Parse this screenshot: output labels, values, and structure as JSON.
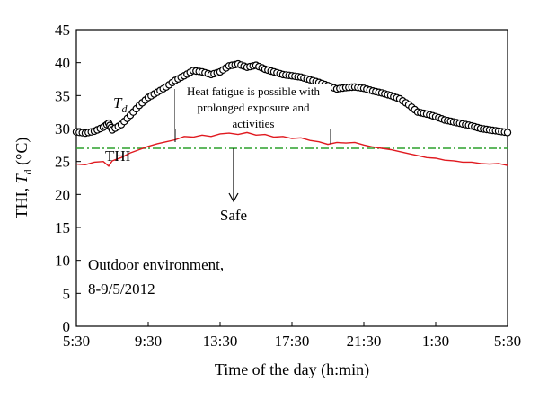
{
  "chart_data": {
    "type": "line",
    "xlabel": "Time of the day (h:min)",
    "ylabel_parts": [
      "THI, ",
      "T",
      "d",
      " (°C)"
    ],
    "ylim": [
      0,
      45
    ],
    "yticks": [
      0,
      5,
      10,
      15,
      20,
      25,
      30,
      35,
      40,
      45
    ],
    "xlim_hours": [
      0,
      24
    ],
    "xticks": [
      {
        "h": 0,
        "label": "5:30"
      },
      {
        "h": 4,
        "label": "9:30"
      },
      {
        "h": 8,
        "label": "13:30"
      },
      {
        "h": 12,
        "label": "17:30"
      },
      {
        "h": 16,
        "label": "21:30"
      },
      {
        "h": 20,
        "label": "1:30"
      },
      {
        "h": 24,
        "label": "5:30"
      }
    ],
    "series": [
      {
        "name": "Td",
        "label_main": "T",
        "label_sub": "d",
        "style": "markers",
        "color": "#000000",
        "points": [
          [
            0,
            29.5
          ],
          [
            0.5,
            29.3
          ],
          [
            1,
            29.6
          ],
          [
            1.5,
            30.2
          ],
          [
            1.8,
            30.8
          ],
          [
            2,
            29.8
          ],
          [
            2.5,
            30.6
          ],
          [
            3,
            32.0
          ],
          [
            3.5,
            33.5
          ],
          [
            4,
            34.7
          ],
          [
            4.5,
            35.5
          ],
          [
            5,
            36.3
          ],
          [
            5.5,
            37.3
          ],
          [
            6,
            38.0
          ],
          [
            6.5,
            38.8
          ],
          [
            7,
            38.6
          ],
          [
            7.5,
            38.2
          ],
          [
            8,
            38.6
          ],
          [
            8.5,
            39.5
          ],
          [
            9,
            39.8
          ],
          [
            9.5,
            39.3
          ],
          [
            10,
            39.6
          ],
          [
            10.5,
            39.0
          ],
          [
            11,
            38.6
          ],
          [
            11.5,
            38.2
          ],
          [
            12,
            38.0
          ],
          [
            12.5,
            37.8
          ],
          [
            13,
            37.4
          ],
          [
            13.5,
            37.0
          ],
          [
            14,
            36.5
          ],
          [
            14.5,
            36.0
          ],
          [
            15,
            36.2
          ],
          [
            15.5,
            36.3
          ],
          [
            16,
            36.1
          ],
          [
            16.5,
            35.7
          ],
          [
            17,
            35.4
          ],
          [
            17.5,
            35.0
          ],
          [
            18,
            34.5
          ],
          [
            18.5,
            33.6
          ],
          [
            19,
            32.5
          ],
          [
            19.5,
            32.2
          ],
          [
            20,
            31.8
          ],
          [
            20.5,
            31.3
          ],
          [
            21,
            31.0
          ],
          [
            21.5,
            30.7
          ],
          [
            22,
            30.4
          ],
          [
            22.5,
            30.0
          ],
          [
            23,
            29.8
          ],
          [
            23.5,
            29.6
          ],
          [
            24,
            29.4
          ]
        ]
      },
      {
        "name": "THI",
        "style": "line",
        "color": "#e0191f",
        "points": [
          [
            0,
            24.6
          ],
          [
            0.5,
            24.5
          ],
          [
            1,
            24.9
          ],
          [
            1.5,
            25.0
          ],
          [
            1.8,
            24.3
          ],
          [
            2,
            25.1
          ],
          [
            2.5,
            25.6
          ],
          [
            3,
            26.3
          ],
          [
            3.5,
            26.8
          ],
          [
            4,
            27.3
          ],
          [
            4.5,
            27.7
          ],
          [
            5,
            28.0
          ],
          [
            5.5,
            28.3
          ],
          [
            6,
            28.8
          ],
          [
            6.5,
            28.7
          ],
          [
            7,
            29.0
          ],
          [
            7.5,
            28.8
          ],
          [
            8,
            29.2
          ],
          [
            8.5,
            29.3
          ],
          [
            9,
            29.1
          ],
          [
            9.5,
            29.4
          ],
          [
            10,
            29.0
          ],
          [
            10.5,
            29.1
          ],
          [
            11,
            28.7
          ],
          [
            11.5,
            28.8
          ],
          [
            12,
            28.5
          ],
          [
            12.5,
            28.6
          ],
          [
            13,
            28.2
          ],
          [
            13.5,
            28.0
          ],
          [
            14,
            27.6
          ],
          [
            14.5,
            27.9
          ],
          [
            15,
            27.8
          ],
          [
            15.5,
            27.9
          ],
          [
            16,
            27.5
          ],
          [
            16.5,
            27.2
          ],
          [
            17,
            27.0
          ],
          [
            17.5,
            26.8
          ],
          [
            18,
            26.5
          ],
          [
            18.5,
            26.2
          ],
          [
            19,
            25.9
          ],
          [
            19.5,
            25.6
          ],
          [
            20,
            25.5
          ],
          [
            20.5,
            25.2
          ],
          [
            21,
            25.1
          ],
          [
            21.5,
            24.9
          ],
          [
            22,
            24.9
          ],
          [
            22.5,
            24.7
          ],
          [
            23,
            24.6
          ],
          [
            23.5,
            24.7
          ],
          [
            24,
            24.4
          ]
        ]
      }
    ],
    "threshold": {
      "y": 27,
      "color": "#2ca02c",
      "style": "dash-dot"
    },
    "annotations": {
      "heat_text": [
        "Heat fatigue is possible with",
        "prolonged exposure and",
        "activities"
      ],
      "safe_text": "Safe",
      "thi_label": "THI",
      "env_text": [
        "Outdoor environment,",
        "8-9/5/2012"
      ]
    }
  }
}
